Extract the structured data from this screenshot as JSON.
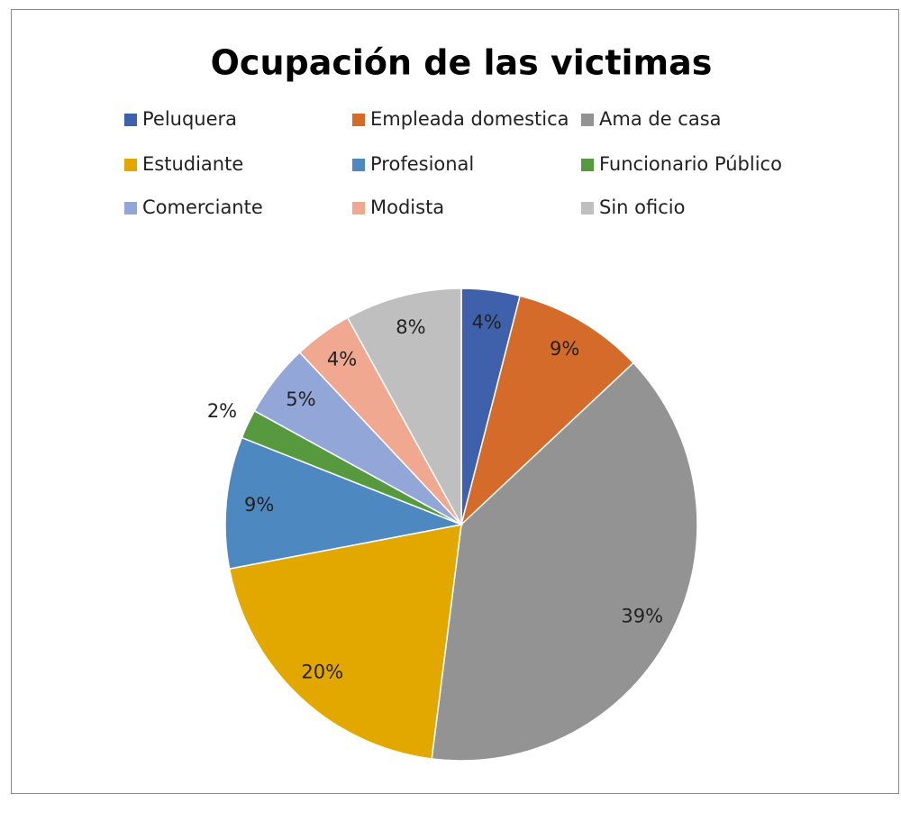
{
  "chart_data": {
    "type": "pie",
    "title": "Ocupación de las victimas",
    "categories": [
      "Peluquera",
      "Empleada domestica",
      "Ama de casa",
      "Estudiante",
      "Profesional",
      "Funcionario Público",
      "Comerciante",
      "Modista",
      "Sin oficio"
    ],
    "values": [
      4,
      9,
      39,
      20,
      9,
      2,
      5,
      4,
      8
    ],
    "value_labels": [
      "4%",
      "9%",
      "39%",
      "20%",
      "9%",
      "2%",
      "5%",
      "4%",
      "8%"
    ],
    "colors": [
      "#3f60aa",
      "#d46b2b",
      "#939393",
      "#e2a800",
      "#4e88c0",
      "#56993f",
      "#93a6d8",
      "#f1a890",
      "#bfbfbf"
    ],
    "legend": "top"
  }
}
